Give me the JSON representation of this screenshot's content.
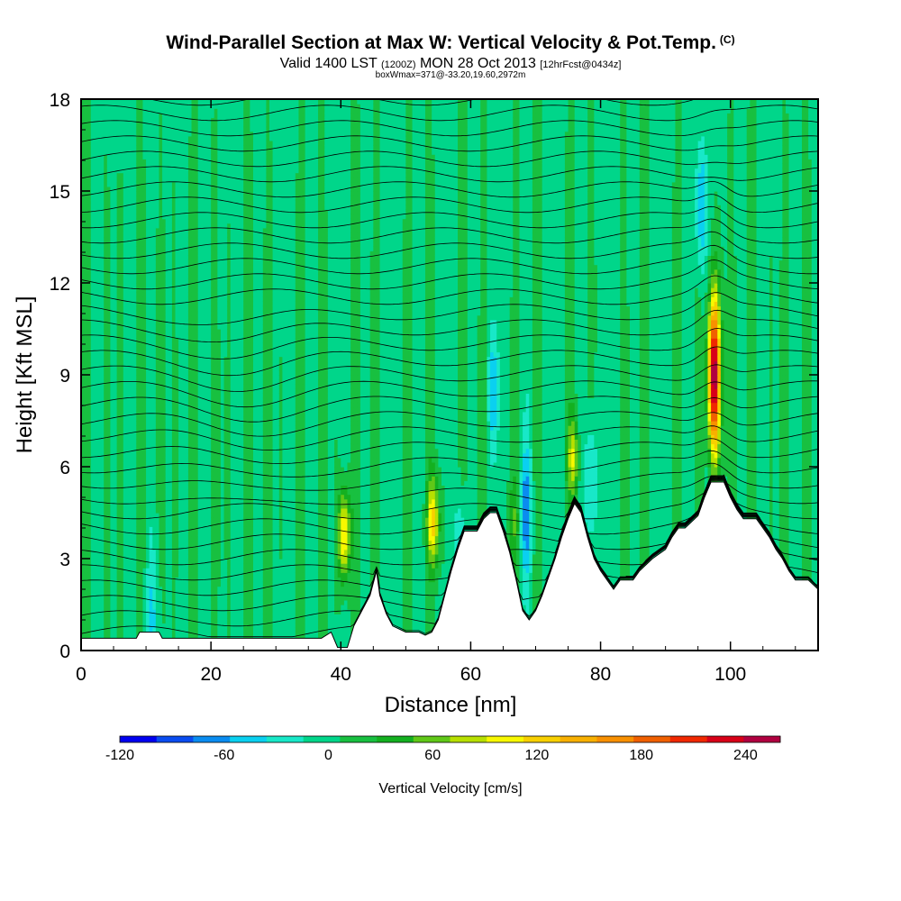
{
  "header": {
    "title": "Wind-Parallel Section at Max W: Vertical Velocity & Pot.Temp.",
    "copyright": "(C)",
    "valid_prefix": "Valid 1400 LST",
    "valid_utc": "(1200Z)",
    "valid_date": "MON 28 Oct 2013",
    "forecast": "[12hrFcst@0434z]",
    "box_info": "boxWmax=371@-33.20,19.60,2972m"
  },
  "chart_data": {
    "type": "heatmap",
    "xlabel": "Distance [nm]",
    "ylabel": "Height [Kft MSL]",
    "xlim": [
      0,
      113.5
    ],
    "ylim": [
      0,
      18
    ],
    "x_ticks": [
      0,
      20,
      40,
      60,
      80,
      100
    ],
    "y_ticks": [
      0,
      3,
      6,
      9,
      12,
      15,
      18
    ],
    "colorbar": {
      "label": "Vertical Velocity [cm/s]",
      "tick_labels": [
        "-120",
        "-60",
        "0",
        "60",
        "120",
        "180",
        "240"
      ],
      "tick_values": [
        -120,
        -60,
        0,
        60,
        120,
        180,
        240
      ],
      "range": [
        -120,
        260
      ],
      "colors": [
        "#0000f0",
        "#0a4cf0",
        "#0a8cf0",
        "#0ad0f0",
        "#18e8c8",
        "#00d68a",
        "#18c040",
        "#14b020",
        "#60c818",
        "#b8e000",
        "#f8f800",
        "#f8d000",
        "#f8b000",
        "#f89000",
        "#f06000",
        "#f02800",
        "#d80018",
        "#b00040"
      ]
    },
    "terrain": [
      {
        "x": 0,
        "y": 0.4
      },
      {
        "x": 8.5,
        "y": 0.4
      },
      {
        "x": 9,
        "y": 0.6
      },
      {
        "x": 12,
        "y": 0.6
      },
      {
        "x": 12.5,
        "y": 0.4
      },
      {
        "x": 37,
        "y": 0.4
      },
      {
        "x": 38.5,
        "y": 0.6
      },
      {
        "x": 39.5,
        "y": 0.1
      },
      {
        "x": 41,
        "y": 0.1
      },
      {
        "x": 42,
        "y": 0.8
      },
      {
        "x": 43,
        "y": 1.2
      },
      {
        "x": 44.5,
        "y": 1.8
      },
      {
        "x": 45.5,
        "y": 2.6
      },
      {
        "x": 46,
        "y": 1.8
      },
      {
        "x": 47,
        "y": 1.2
      },
      {
        "x": 48,
        "y": 0.8
      },
      {
        "x": 50,
        "y": 0.6
      },
      {
        "x": 52,
        "y": 0.6
      },
      {
        "x": 53,
        "y": 0.5
      },
      {
        "x": 54,
        "y": 0.6
      },
      {
        "x": 55,
        "y": 1.0
      },
      {
        "x": 56,
        "y": 1.8
      },
      {
        "x": 57,
        "y": 2.6
      },
      {
        "x": 58,
        "y": 3.3
      },
      {
        "x": 59,
        "y": 3.9
      },
      {
        "x": 61,
        "y": 3.9
      },
      {
        "x": 62,
        "y": 4.3
      },
      {
        "x": 63,
        "y": 4.5
      },
      {
        "x": 64,
        "y": 4.5
      },
      {
        "x": 65,
        "y": 3.9
      },
      {
        "x": 66,
        "y": 3.2
      },
      {
        "x": 67,
        "y": 2.3
      },
      {
        "x": 68,
        "y": 1.3
      },
      {
        "x": 69,
        "y": 1.0
      },
      {
        "x": 70,
        "y": 1.3
      },
      {
        "x": 71,
        "y": 1.8
      },
      {
        "x": 72,
        "y": 2.4
      },
      {
        "x": 73,
        "y": 3.0
      },
      {
        "x": 74,
        "y": 3.7
      },
      {
        "x": 75,
        "y": 4.3
      },
      {
        "x": 76,
        "y": 4.8
      },
      {
        "x": 77,
        "y": 4.5
      },
      {
        "x": 78,
        "y": 3.7
      },
      {
        "x": 79,
        "y": 3.0
      },
      {
        "x": 80,
        "y": 2.6
      },
      {
        "x": 81,
        "y": 2.3
      },
      {
        "x": 82,
        "y": 2.0
      },
      {
        "x": 83,
        "y": 2.3
      },
      {
        "x": 85,
        "y": 2.3
      },
      {
        "x": 86,
        "y": 2.6
      },
      {
        "x": 88,
        "y": 3.0
      },
      {
        "x": 90,
        "y": 3.3
      },
      {
        "x": 91,
        "y": 3.7
      },
      {
        "x": 92,
        "y": 4.0
      },
      {
        "x": 93,
        "y": 4.0
      },
      {
        "x": 95,
        "y": 4.4
      },
      {
        "x": 96,
        "y": 5.0
      },
      {
        "x": 97,
        "y": 5.5
      },
      {
        "x": 99,
        "y": 5.5
      },
      {
        "x": 100,
        "y": 5.0
      },
      {
        "x": 101,
        "y": 4.6
      },
      {
        "x": 102,
        "y": 4.3
      },
      {
        "x": 104,
        "y": 4.3
      },
      {
        "x": 105,
        "y": 4.0
      },
      {
        "x": 106,
        "y": 3.7
      },
      {
        "x": 107,
        "y": 3.3
      },
      {
        "x": 108,
        "y": 3.0
      },
      {
        "x": 109,
        "y": 2.6
      },
      {
        "x": 110,
        "y": 2.3
      },
      {
        "x": 112,
        "y": 2.3
      },
      {
        "x": 113.5,
        "y": 2.0
      }
    ],
    "updraft_cores": [
      {
        "x": 97.5,
        "y": 9.0,
        "w_peak": 260
      },
      {
        "x": 40.5,
        "y": 3.8,
        "w_peak": 120
      },
      {
        "x": 54.2,
        "y": 4.2,
        "w_peak": 110
      },
      {
        "x": 75.8,
        "y": 6.3,
        "w_peak": 80
      },
      {
        "x": 66.5,
        "y": 4.2,
        "w_peak": 40
      }
    ],
    "downdraft_zones": [
      {
        "x": 95.5,
        "y": 14.5,
        "w_min": -50
      },
      {
        "x": 63.5,
        "y": 8.5,
        "w_min": -40
      },
      {
        "x": 68.5,
        "y": 4.5,
        "w_min": -50
      },
      {
        "x": 78.5,
        "y": 5.5,
        "w_min": -45
      },
      {
        "x": 11,
        "y": 1.0,
        "w_min": -30
      },
      {
        "x": 58.5,
        "y": 3.0,
        "w_min": -40
      }
    ]
  }
}
